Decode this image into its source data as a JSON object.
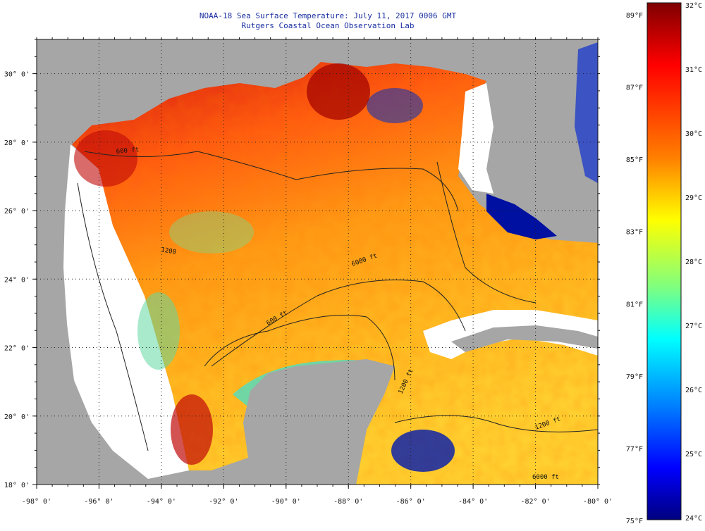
{
  "title": {
    "line1": "NOAA-18 Sea Surface Temperature:  July 11, 2017 0006 GMT",
    "line2": "Rutgers Coastal Ocean Observation Lab"
  },
  "map": {
    "lon_range": [
      -98,
      -80
    ],
    "lat_range": [
      18,
      31
    ],
    "lon_ticks": [
      {
        "value": -98,
        "label": "-98° 0'"
      },
      {
        "value": -96,
        "label": "-96° 0'"
      },
      {
        "value": -94,
        "label": "-94° 0'"
      },
      {
        "value": -92,
        "label": "-92° 0'"
      },
      {
        "value": -90,
        "label": "-90° 0'"
      },
      {
        "value": -88,
        "label": "-88° 0'"
      },
      {
        "value": -86,
        "label": "-86° 0'"
      },
      {
        "value": -84,
        "label": "-84° 0'"
      },
      {
        "value": -82,
        "label": "-82° 0'"
      },
      {
        "value": -80,
        "label": "-80° 0'"
      }
    ],
    "lat_ticks": [
      {
        "value": 30,
        "label": "30° 0'"
      },
      {
        "value": 28,
        "label": "28° 0'"
      },
      {
        "value": 26,
        "label": "26° 0'"
      },
      {
        "value": 24,
        "label": "24° 0'"
      },
      {
        "value": 22,
        "label": "22° 0'"
      },
      {
        "value": 20,
        "label": "20° 0'"
      },
      {
        "value": 18,
        "label": "18° 0'"
      }
    ],
    "contour_labels": [
      "600 ft",
      "1200",
      "6000 ft",
      "600 ft",
      "1200 ft",
      "1200 ft",
      "6000 ft"
    ]
  },
  "colorbar": {
    "celsius_labels": [
      "32°C",
      "31°C",
      "30°C",
      "29°C",
      "28°C",
      "27°C",
      "26°C",
      "25°C",
      "24°C"
    ],
    "fahrenheit_labels": [
      "89°F",
      "87°F",
      "85°F",
      "83°F",
      "81°F",
      "79°F",
      "77°F",
      "75°F"
    ],
    "colors": [
      "#00007f",
      "#0000ff",
      "#007fff",
      "#00ffff",
      "#7fff7f",
      "#ffff00",
      "#ff7f00",
      "#ff0000",
      "#7f0000"
    ]
  }
}
